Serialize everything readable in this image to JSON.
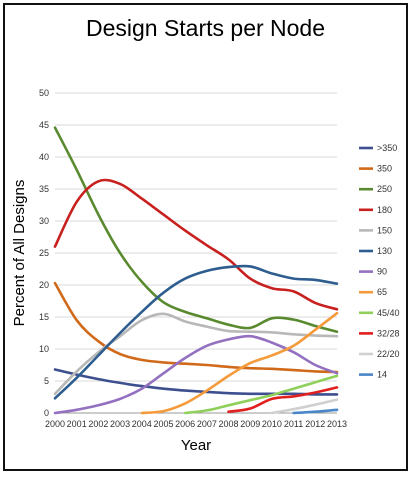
{
  "chart_data": {
    "type": "line",
    "title": "Design Starts per Node",
    "xlabel": "Year",
    "ylabel": "Percent of All Designs",
    "xlim": [
      2000,
      2013
    ],
    "ylim": [
      0,
      50
    ],
    "yticks": [
      0,
      5,
      10,
      15,
      20,
      25,
      30,
      35,
      40,
      45,
      50
    ],
    "xticks": [
      2000,
      2001,
      2002,
      2003,
      2004,
      2005,
      2006,
      2007,
      2008,
      2009,
      2010,
      2011,
      2012,
      2013
    ],
    "grid": "horizontal",
    "legend_position": "right",
    "series": [
      {
        "name": ">350",
        "color": "#3e4f8f",
        "x": [
          2000,
          2001,
          2002,
          2003,
          2004,
          2005,
          2006,
          2007,
          2008,
          2009,
          2010,
          2011,
          2012,
          2013
        ],
        "values": [
          6.8,
          6.0,
          5.3,
          4.7,
          4.2,
          3.8,
          3.5,
          3.3,
          3.1,
          3.0,
          3.0,
          3.0,
          2.9,
          2.9
        ]
      },
      {
        "name": "350",
        "color": "#d06a1a",
        "x": [
          2000,
          2001,
          2002,
          2003,
          2004,
          2005,
          2006,
          2007,
          2008,
          2009,
          2010,
          2011,
          2012,
          2013
        ],
        "values": [
          20.3,
          14.5,
          11.2,
          9.2,
          8.3,
          7.9,
          7.7,
          7.5,
          7.2,
          7.0,
          6.9,
          6.7,
          6.5,
          6.4
        ]
      },
      {
        "name": "250",
        "color": "#5a8a2f",
        "x": [
          2000,
          2001,
          2002,
          2003,
          2004,
          2005,
          2006,
          2007,
          2008,
          2009,
          2010,
          2011,
          2012,
          2013
        ],
        "values": [
          44.6,
          38.0,
          31.0,
          25.0,
          20.5,
          17.3,
          15.8,
          14.8,
          13.8,
          13.3,
          14.8,
          14.6,
          13.6,
          12.7
        ]
      },
      {
        "name": "180",
        "color": "#c8201e",
        "x": [
          2000,
          2001,
          2002,
          2003,
          2004,
          2005,
          2006,
          2007,
          2008,
          2009,
          2010,
          2011,
          2012,
          2013
        ],
        "values": [
          26.0,
          33.0,
          36.2,
          35.8,
          33.5,
          31.0,
          28.5,
          26.2,
          24.0,
          21.0,
          19.5,
          19.0,
          17.2,
          16.2
        ]
      },
      {
        "name": "150",
        "color": "#b8b8b8",
        "x": [
          2000,
          2001,
          2002,
          2003,
          2004,
          2005,
          2006,
          2007,
          2008,
          2009,
          2010,
          2011,
          2012,
          2013
        ],
        "values": [
          3.0,
          6.5,
          9.5,
          12.0,
          14.5,
          15.5,
          14.3,
          13.5,
          12.8,
          12.7,
          12.6,
          12.3,
          12.1,
          12.0
        ]
      },
      {
        "name": "130",
        "color": "#2e5d8f",
        "x": [
          2000,
          2001,
          2002,
          2003,
          2004,
          2005,
          2006,
          2007,
          2008,
          2009,
          2010,
          2011,
          2012,
          2013
        ],
        "values": [
          2.3,
          5.5,
          9.0,
          12.5,
          15.8,
          18.8,
          21.0,
          22.2,
          22.8,
          22.9,
          21.8,
          21.0,
          20.8,
          20.2
        ]
      },
      {
        "name": "90",
        "color": "#9370c0",
        "x": [
          2000,
          2001,
          2002,
          2003,
          2004,
          2005,
          2006,
          2007,
          2008,
          2009,
          2010,
          2011,
          2012,
          2013
        ],
        "values": [
          0,
          0.5,
          1.2,
          2.2,
          3.8,
          6.2,
          8.6,
          10.5,
          11.5,
          12.0,
          11.0,
          9.5,
          7.5,
          6.2
        ]
      },
      {
        "name": "65",
        "color": "#f59a3b",
        "x": [
          2004,
          2005,
          2006,
          2007,
          2008,
          2009,
          2010,
          2011,
          2012,
          2013
        ],
        "values": [
          0,
          0.3,
          1.5,
          3.5,
          5.8,
          7.8,
          9.0,
          10.5,
          13.0,
          15.6
        ]
      },
      {
        "name": "45/40",
        "color": "#8fcf5a",
        "x": [
          2006,
          2007,
          2008,
          2009,
          2010,
          2011,
          2012,
          2013
        ],
        "values": [
          0,
          0.4,
          1.2,
          2.0,
          2.8,
          3.8,
          4.8,
          5.8
        ]
      },
      {
        "name": "32/28",
        "color": "#e0201e",
        "x": [
          2008,
          2009,
          2010,
          2011,
          2012,
          2013
        ],
        "values": [
          0.2,
          0.7,
          2.2,
          2.6,
          3.2,
          4.0
        ]
      },
      {
        "name": "22/20",
        "color": "#d0d0d0",
        "x": [
          2010,
          2011,
          2012,
          2013
        ],
        "values": [
          0,
          0.6,
          1.3,
          2.1
        ]
      },
      {
        "name": "14",
        "color": "#4a86c8",
        "x": [
          2011,
          2012,
          2013
        ],
        "values": [
          0,
          0.2,
          0.5
        ]
      }
    ]
  }
}
